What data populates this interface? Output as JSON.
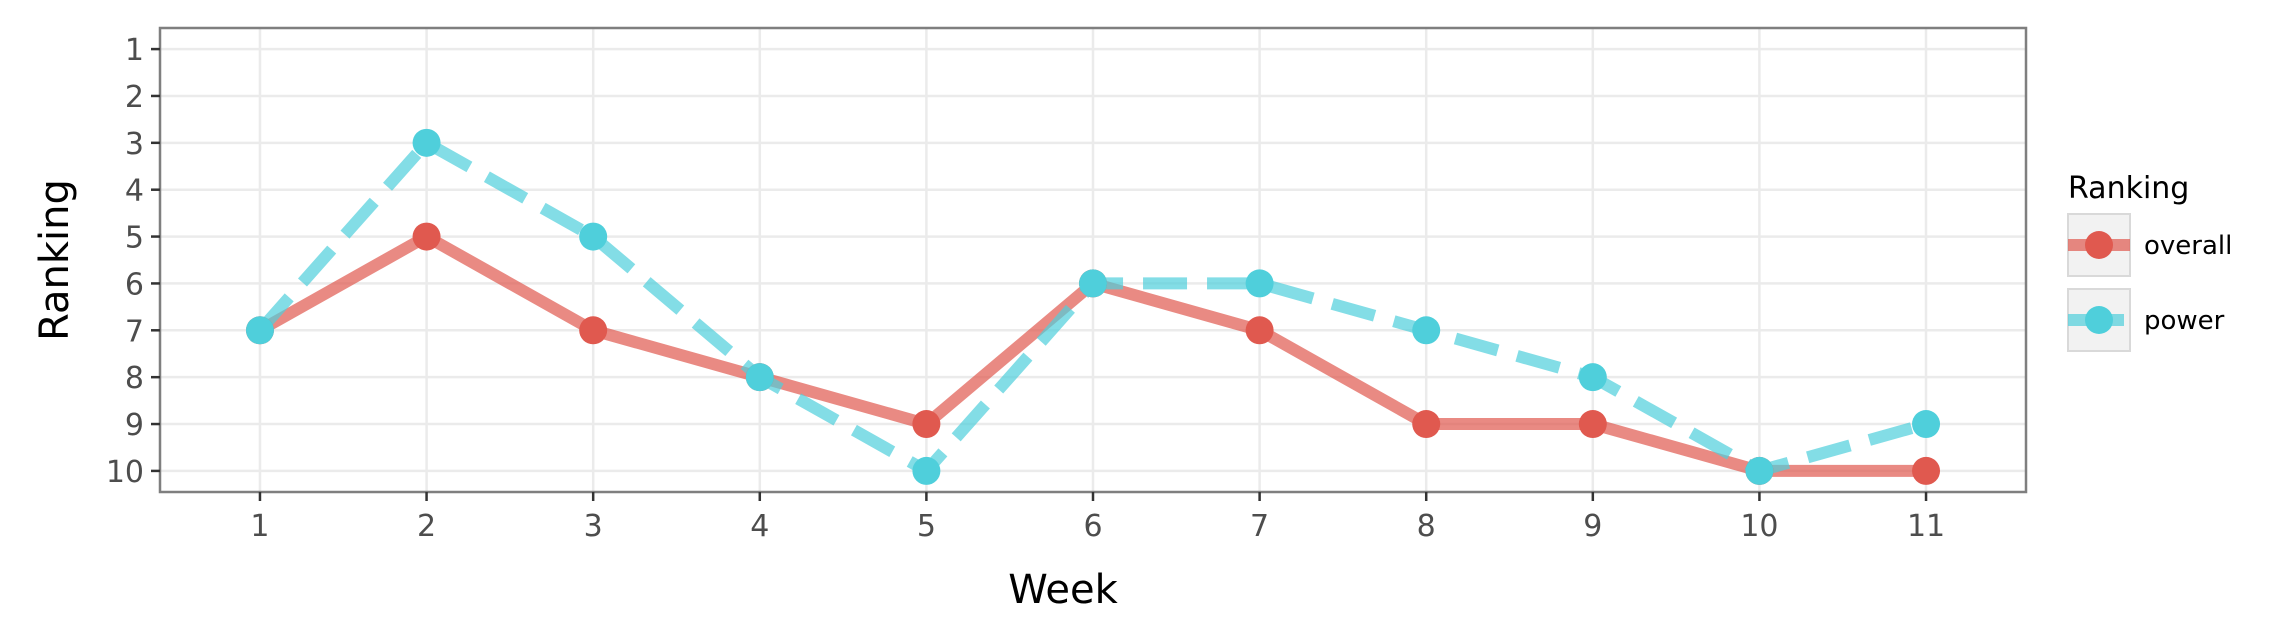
{
  "chart_data": {
    "type": "line",
    "xlabel": "Week",
    "ylabel": "Ranking",
    "x": [
      1,
      2,
      3,
      4,
      5,
      6,
      7,
      8,
      9,
      10,
      11
    ],
    "x_ticks": [
      "1",
      "2",
      "3",
      "4",
      "5",
      "6",
      "7",
      "8",
      "9",
      "10",
      "11"
    ],
    "y_ticks": [
      "1",
      "2",
      "3",
      "4",
      "5",
      "6",
      "7",
      "8",
      "9",
      "10"
    ],
    "xlim": [
      0.4,
      11.6
    ],
    "ylim": [
      10.45,
      0.55
    ],
    "y_reversed": true,
    "grid": true,
    "legend": {
      "title": "Ranking",
      "position": "right"
    },
    "series": [
      {
        "name": "overall",
        "values": [
          7,
          5,
          7,
          8,
          9,
          6,
          7,
          9,
          9,
          10,
          10
        ],
        "color": "#e0594f",
        "linestyle": "solid"
      },
      {
        "name": "power",
        "values": [
          7,
          3,
          5,
          8,
          10,
          6,
          6,
          7,
          8,
          10,
          9
        ],
        "color": "#4fcfdb",
        "linestyle": "dashed"
      }
    ]
  }
}
